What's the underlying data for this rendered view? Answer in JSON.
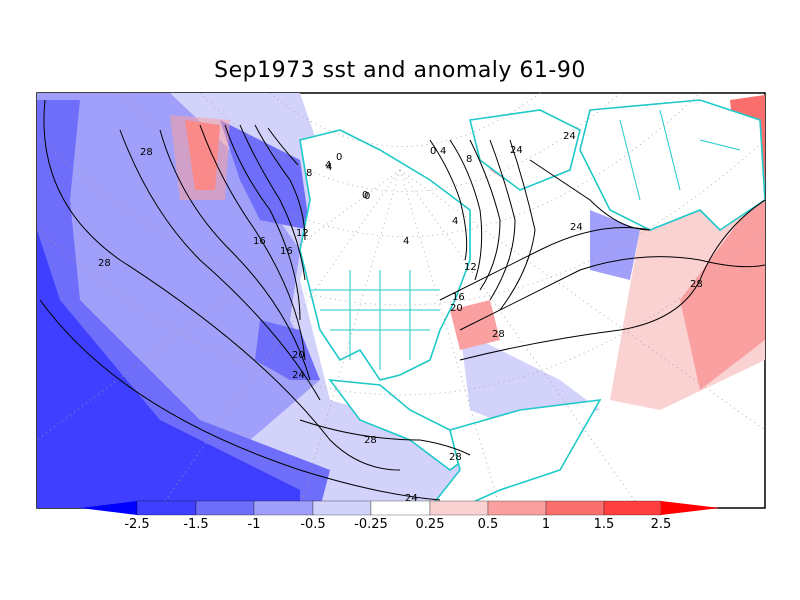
{
  "title": "Sep1973 sst and anomaly 61-90",
  "colors": {
    "land_coast": "#1fc9c9",
    "contour": "#000000",
    "grid": "#a0a0a0"
  },
  "colorbar": {
    "tick_labels": [
      "-2.5",
      "-1.5",
      "-1",
      "-0.5",
      "-0.25",
      "0.25",
      "0.5",
      "1",
      "1.5",
      "2.5"
    ],
    "bins": [
      {
        "color": "#0000ff"
      },
      {
        "color": "#3f3fff"
      },
      {
        "color": "#6e6efa"
      },
      {
        "color": "#a0a0fa"
      },
      {
        "color": "#d2d2fa"
      },
      {
        "color": "#ffffff"
      },
      {
        "color": "#fad2d2"
      },
      {
        "color": "#faa0a0"
      },
      {
        "color": "#fa6e6e"
      },
      {
        "color": "#ff3f3f"
      },
      {
        "color": "#ff0000"
      }
    ]
  },
  "contour_labels": [
    "28",
    "28",
    "28",
    "24",
    "20",
    "16",
    "12",
    "8",
    "4",
    "0",
    "0",
    "0",
    "4",
    "4",
    "8",
    "4",
    "12",
    "16",
    "20",
    "24",
    "28",
    "28",
    "24",
    "24",
    "28",
    "24",
    "0",
    "4",
    "16"
  ]
}
